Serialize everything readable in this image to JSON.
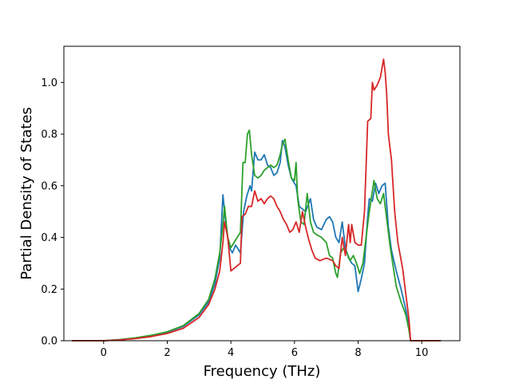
{
  "chart_data": {
    "type": "line",
    "title": "",
    "xlabel": "Frequency (THz)",
    "ylabel": "Partial Density of States",
    "xlim": [
      -1.25,
      11.2
    ],
    "ylim": [
      0.0,
      1.14
    ],
    "xticks": [
      0,
      2,
      4,
      6,
      8,
      10
    ],
    "xtick_labels": [
      "0",
      "2",
      "4",
      "6",
      "8",
      "10"
    ],
    "yticks": [
      0.0,
      0.2,
      0.4,
      0.6,
      0.8,
      1.0
    ],
    "ytick_labels": [
      "0.0",
      "0.2",
      "0.4",
      "0.6",
      "0.8",
      "1.0"
    ],
    "grid": false,
    "legend": "none",
    "series": [
      {
        "color": "#1f77b4",
        "points": [
          [
            -1.0,
            0.0
          ],
          [
            0.0,
            0.0
          ],
          [
            0.5,
            0.004
          ],
          [
            1.0,
            0.01
          ],
          [
            1.5,
            0.02
          ],
          [
            2.0,
            0.033
          ],
          [
            2.5,
            0.055
          ],
          [
            3.0,
            0.1
          ],
          [
            3.3,
            0.15
          ],
          [
            3.5,
            0.22
          ],
          [
            3.65,
            0.32
          ],
          [
            3.75,
            0.565
          ],
          [
            3.85,
            0.44
          ],
          [
            3.95,
            0.36
          ],
          [
            4.05,
            0.34
          ],
          [
            4.15,
            0.37
          ],
          [
            4.3,
            0.34
          ],
          [
            4.4,
            0.5
          ],
          [
            4.5,
            0.56
          ],
          [
            4.6,
            0.6
          ],
          [
            4.65,
            0.58
          ],
          [
            4.75,
            0.73
          ],
          [
            4.85,
            0.7
          ],
          [
            4.95,
            0.7
          ],
          [
            5.05,
            0.72
          ],
          [
            5.15,
            0.68
          ],
          [
            5.25,
            0.67
          ],
          [
            5.35,
            0.64
          ],
          [
            5.45,
            0.65
          ],
          [
            5.55,
            0.69
          ],
          [
            5.62,
            0.775
          ],
          [
            5.7,
            0.75
          ],
          [
            5.8,
            0.68
          ],
          [
            5.9,
            0.63
          ],
          [
            6.0,
            0.61
          ],
          [
            6.05,
            0.6
          ],
          [
            6.15,
            0.52
          ],
          [
            6.25,
            0.51
          ],
          [
            6.35,
            0.5
          ],
          [
            6.5,
            0.55
          ],
          [
            6.6,
            0.47
          ],
          [
            6.7,
            0.44
          ],
          [
            6.85,
            0.43
          ],
          [
            7.0,
            0.47
          ],
          [
            7.1,
            0.48
          ],
          [
            7.2,
            0.46
          ],
          [
            7.3,
            0.4
          ],
          [
            7.4,
            0.38
          ],
          [
            7.5,
            0.46
          ],
          [
            7.6,
            0.36
          ],
          [
            7.7,
            0.32
          ],
          [
            7.8,
            0.3
          ],
          [
            7.9,
            0.29
          ],
          [
            8.0,
            0.19
          ],
          [
            8.1,
            0.24
          ],
          [
            8.2,
            0.3
          ],
          [
            8.3,
            0.48
          ],
          [
            8.35,
            0.55
          ],
          [
            8.45,
            0.54
          ],
          [
            8.55,
            0.61
          ],
          [
            8.65,
            0.57
          ],
          [
            8.75,
            0.6
          ],
          [
            8.85,
            0.61
          ],
          [
            8.95,
            0.44
          ],
          [
            9.05,
            0.35
          ],
          [
            9.2,
            0.27
          ],
          [
            9.35,
            0.2
          ],
          [
            9.5,
            0.12
          ],
          [
            9.6,
            0.05
          ],
          [
            9.65,
            0.0
          ],
          [
            10.6,
            0.0
          ]
        ]
      },
      {
        "color": "#2ca02c",
        "points": [
          [
            -1.0,
            0.0
          ],
          [
            0.0,
            0.0
          ],
          [
            0.5,
            0.004
          ],
          [
            1.0,
            0.011
          ],
          [
            1.5,
            0.021
          ],
          [
            2.0,
            0.035
          ],
          [
            2.5,
            0.058
          ],
          [
            3.0,
            0.105
          ],
          [
            3.3,
            0.16
          ],
          [
            3.5,
            0.24
          ],
          [
            3.65,
            0.34
          ],
          [
            3.75,
            0.45
          ],
          [
            3.8,
            0.52
          ],
          [
            3.9,
            0.4
          ],
          [
            4.0,
            0.36
          ],
          [
            4.1,
            0.38
          ],
          [
            4.2,
            0.4
          ],
          [
            4.3,
            0.42
          ],
          [
            4.38,
            0.69
          ],
          [
            4.45,
            0.69
          ],
          [
            4.52,
            0.8
          ],
          [
            4.58,
            0.815
          ],
          [
            4.65,
            0.72
          ],
          [
            4.75,
            0.64
          ],
          [
            4.85,
            0.63
          ],
          [
            4.95,
            0.64
          ],
          [
            5.05,
            0.66
          ],
          [
            5.15,
            0.67
          ],
          [
            5.25,
            0.68
          ],
          [
            5.35,
            0.67
          ],
          [
            5.45,
            0.68
          ],
          [
            5.55,
            0.72
          ],
          [
            5.62,
            0.76
          ],
          [
            5.7,
            0.78
          ],
          [
            5.8,
            0.7
          ],
          [
            5.9,
            0.63
          ],
          [
            6.0,
            0.62
          ],
          [
            6.05,
            0.69
          ],
          [
            6.1,
            0.55
          ],
          [
            6.2,
            0.46
          ],
          [
            6.3,
            0.45
          ],
          [
            6.4,
            0.57
          ],
          [
            6.5,
            0.46
          ],
          [
            6.6,
            0.42
          ],
          [
            6.7,
            0.41
          ],
          [
            6.85,
            0.4
          ],
          [
            7.0,
            0.38
          ],
          [
            7.1,
            0.33
          ],
          [
            7.2,
            0.32
          ],
          [
            7.3,
            0.26
          ],
          [
            7.35,
            0.245
          ],
          [
            7.45,
            0.34
          ],
          [
            7.55,
            0.36
          ],
          [
            7.65,
            0.34
          ],
          [
            7.75,
            0.31
          ],
          [
            7.85,
            0.33
          ],
          [
            7.95,
            0.3
          ],
          [
            8.05,
            0.26
          ],
          [
            8.15,
            0.3
          ],
          [
            8.25,
            0.4
          ],
          [
            8.35,
            0.5
          ],
          [
            8.45,
            0.58
          ],
          [
            8.5,
            0.62
          ],
          [
            8.6,
            0.55
          ],
          [
            8.7,
            0.53
          ],
          [
            8.8,
            0.57
          ],
          [
            8.9,
            0.47
          ],
          [
            9.0,
            0.37
          ],
          [
            9.1,
            0.29
          ],
          [
            9.2,
            0.21
          ],
          [
            9.35,
            0.15
          ],
          [
            9.5,
            0.1
          ],
          [
            9.6,
            0.04
          ],
          [
            9.65,
            0.0
          ],
          [
            10.6,
            0.0
          ]
        ]
      },
      {
        "color": "#d62728",
        "points": [
          [
            -1.0,
            0.0
          ],
          [
            0.0,
            0.0
          ],
          [
            0.5,
            0.003
          ],
          [
            1.0,
            0.008
          ],
          [
            1.5,
            0.016
          ],
          [
            2.0,
            0.028
          ],
          [
            2.5,
            0.048
          ],
          [
            3.0,
            0.09
          ],
          [
            3.3,
            0.14
          ],
          [
            3.5,
            0.2
          ],
          [
            3.65,
            0.27
          ],
          [
            3.75,
            0.38
          ],
          [
            3.8,
            0.46
          ],
          [
            3.9,
            0.4
          ],
          [
            4.0,
            0.27
          ],
          [
            4.1,
            0.28
          ],
          [
            4.2,
            0.29
          ],
          [
            4.3,
            0.3
          ],
          [
            4.35,
            0.48
          ],
          [
            4.45,
            0.49
          ],
          [
            4.55,
            0.52
          ],
          [
            4.65,
            0.52
          ],
          [
            4.75,
            0.58
          ],
          [
            4.85,
            0.54
          ],
          [
            4.95,
            0.55
          ],
          [
            5.05,
            0.53
          ],
          [
            5.15,
            0.55
          ],
          [
            5.25,
            0.56
          ],
          [
            5.35,
            0.55
          ],
          [
            5.45,
            0.52
          ],
          [
            5.55,
            0.5
          ],
          [
            5.65,
            0.47
          ],
          [
            5.75,
            0.45
          ],
          [
            5.85,
            0.42
          ],
          [
            5.95,
            0.43
          ],
          [
            6.05,
            0.46
          ],
          [
            6.15,
            0.42
          ],
          [
            6.25,
            0.5
          ],
          [
            6.35,
            0.44
          ],
          [
            6.45,
            0.39
          ],
          [
            6.55,
            0.35
          ],
          [
            6.65,
            0.32
          ],
          [
            6.8,
            0.31
          ],
          [
            7.0,
            0.32
          ],
          [
            7.2,
            0.31
          ],
          [
            7.3,
            0.29
          ],
          [
            7.4,
            0.28
          ],
          [
            7.5,
            0.4
          ],
          [
            7.6,
            0.33
          ],
          [
            7.7,
            0.45
          ],
          [
            7.75,
            0.38
          ],
          [
            7.8,
            0.45
          ],
          [
            7.9,
            0.38
          ],
          [
            8.0,
            0.37
          ],
          [
            8.1,
            0.37
          ],
          [
            8.2,
            0.5
          ],
          [
            8.3,
            0.85
          ],
          [
            8.4,
            0.86
          ],
          [
            8.45,
            1.0
          ],
          [
            8.5,
            0.97
          ],
          [
            8.6,
            0.99
          ],
          [
            8.7,
            1.02
          ],
          [
            8.8,
            1.09
          ],
          [
            8.85,
            1.04
          ],
          [
            8.9,
            0.95
          ],
          [
            8.95,
            0.8
          ],
          [
            9.05,
            0.7
          ],
          [
            9.15,
            0.5
          ],
          [
            9.25,
            0.38
          ],
          [
            9.4,
            0.28
          ],
          [
            9.5,
            0.18
          ],
          [
            9.6,
            0.08
          ],
          [
            9.65,
            0.0
          ],
          [
            10.6,
            0.0
          ]
        ]
      }
    ]
  }
}
